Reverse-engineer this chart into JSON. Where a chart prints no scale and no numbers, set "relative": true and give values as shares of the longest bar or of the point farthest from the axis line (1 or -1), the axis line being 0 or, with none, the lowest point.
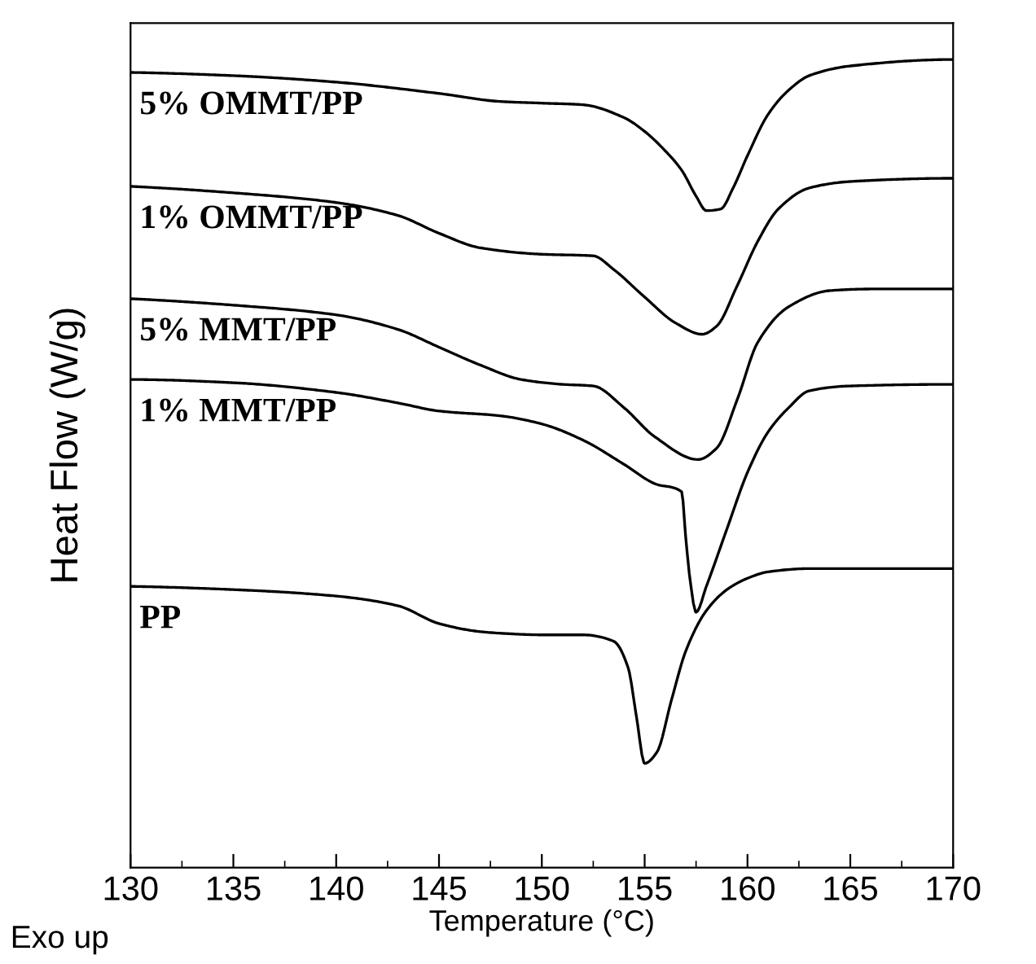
{
  "chart_data": {
    "type": "line",
    "relative": true,
    "xlabel": "Temperature (°C)",
    "ylabel": "Heat Flow (W/g)",
    "xlim": [
      130,
      170
    ],
    "xticks": [
      130,
      135,
      140,
      145,
      150,
      155,
      160,
      165,
      170
    ],
    "grid": false,
    "legend": false,
    "marker": "none",
    "line_style": "solid",
    "annotations": [
      "Exo up"
    ],
    "series": [
      {
        "name": "5% OMMT/PP",
        "color": "#000000",
        "x": [
          130,
          135,
          140,
          145,
          148,
          150,
          152,
          154,
          155,
          156,
          156.8,
          157.5,
          158,
          158.7,
          159.3,
          160,
          161,
          162,
          163,
          165,
          170
        ],
        "values": [
          0.984,
          0.98,
          0.972,
          0.958,
          0.948,
          0.946,
          0.944,
          0.928,
          0.911,
          0.887,
          0.863,
          0.831,
          0.813,
          0.815,
          0.841,
          0.881,
          0.932,
          0.962,
          0.98,
          0.992,
          1
        ]
      },
      {
        "name": "1% OMMT/PP",
        "color": "#000000",
        "x": [
          130,
          135,
          140,
          143,
          145,
          147,
          150,
          152.5,
          153.5,
          155,
          156.5,
          157.8,
          158.5,
          159.5,
          160.5,
          161.5,
          163,
          165,
          170
        ],
        "values": [
          0.843,
          0.835,
          0.823,
          0.807,
          0.785,
          0.767,
          0.759,
          0.757,
          0.74,
          0.706,
          0.674,
          0.66,
          0.67,
          0.72,
          0.775,
          0.815,
          0.841,
          0.849,
          0.853
        ]
      },
      {
        "name": "5% MMT/PP",
        "color": "#000000",
        "x": [
          130,
          135,
          140,
          143,
          145,
          147,
          149,
          151,
          152.5,
          154,
          155.5,
          157.6,
          158.5,
          159.5,
          160.5,
          162,
          164,
          166,
          170
        ],
        "values": [
          0.704,
          0.696,
          0.684,
          0.666,
          0.644,
          0.622,
          0.604,
          0.598,
          0.596,
          0.569,
          0.533,
          0.505,
          0.519,
          0.579,
          0.65,
          0.694,
          0.714,
          0.716,
          0.716
        ]
      },
      {
        "name": "1% MMT/PP",
        "color": "#000000",
        "x": [
          130,
          135,
          140,
          143,
          145,
          148,
          150,
          152,
          154,
          155.5,
          156.8,
          157,
          157.2,
          157.5,
          158,
          159,
          160,
          161,
          162,
          163,
          165,
          170
        ],
        "values": [
          0.604,
          0.6,
          0.588,
          0.575,
          0.565,
          0.559,
          0.549,
          0.529,
          0.499,
          0.475,
          0.465,
          0.408,
          0.358,
          0.316,
          0.348,
          0.419,
          0.489,
          0.539,
          0.569,
          0.59,
          0.596,
          0.598
        ]
      },
      {
        "name": "PP",
        "color": "#000000",
        "x": [
          130,
          135,
          140,
          143,
          145,
          147,
          148,
          150,
          152,
          153.5,
          154.2,
          154.6,
          155,
          155.6,
          156.3,
          157,
          158,
          159,
          160,
          161,
          163,
          165,
          170
        ],
        "values": [
          0.348,
          0.344,
          0.336,
          0.324,
          0.302,
          0.292,
          0.29,
          0.288,
          0.288,
          0.28,
          0.247,
          0.187,
          0.129,
          0.143,
          0.207,
          0.268,
          0.318,
          0.344,
          0.358,
          0.366,
          0.37,
          0.37,
          0.37
        ]
      }
    ]
  }
}
